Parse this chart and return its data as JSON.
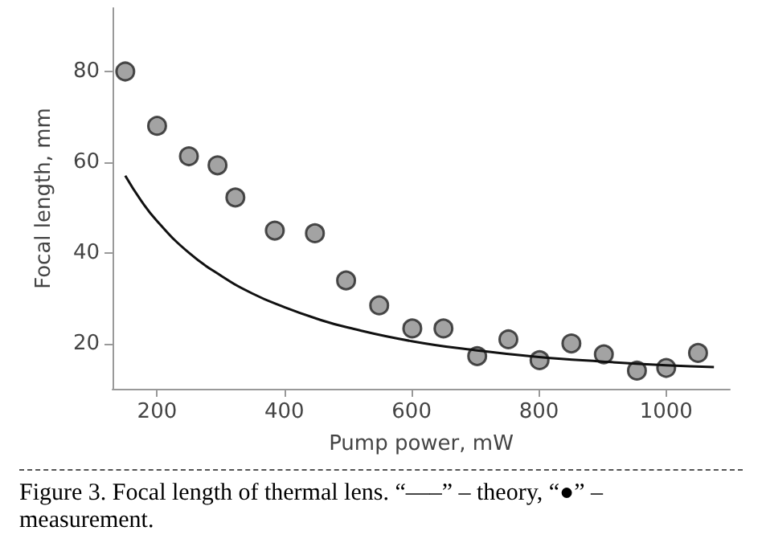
{
  "chart_data": {
    "type": "scatter",
    "xlabel": "Pump power, mW",
    "ylabel": "Focal length, mm",
    "annotations": [
      "Figure 3. Focal length of thermal lens. “—–” – theory, “●” – measurement."
    ],
    "xlim": [
      130,
      1100
    ],
    "ylim": [
      10,
      94
    ],
    "xticks": [
      200,
      400,
      600,
      800,
      1000
    ],
    "yticks": [
      20,
      40,
      60,
      80
    ],
    "grid": false,
    "series": [
      {
        "type": "line",
        "color": "#111111",
        "marker": "none",
        "line_style": "solid",
        "x": [
          150,
          175,
          200,
          250,
          300,
          350,
          400,
          450,
          500,
          600,
          700,
          800,
          900,
          1000,
          1075
        ],
        "values": [
          57,
          51.5,
          47,
          40,
          35,
          31,
          28,
          25.5,
          23.5,
          20.5,
          18.5,
          17,
          16,
          15.2,
          14.8
        ]
      },
      {
        "color": "#8c8c8c",
        "marker": "circle",
        "x": [
          150,
          200,
          250,
          295,
          323,
          385,
          448,
          497,
          549,
          601,
          650,
          703,
          752,
          801,
          851,
          902,
          954,
          1000,
          1050
        ],
        "values": [
          80,
          68,
          61.3,
          59.3,
          52.2,
          44.9,
          44.3,
          33.9,
          28.4,
          23.3,
          23.3,
          17.2,
          20.9,
          16.3,
          20,
          17.6,
          14,
          14.6,
          17.9
        ]
      }
    ]
  }
}
